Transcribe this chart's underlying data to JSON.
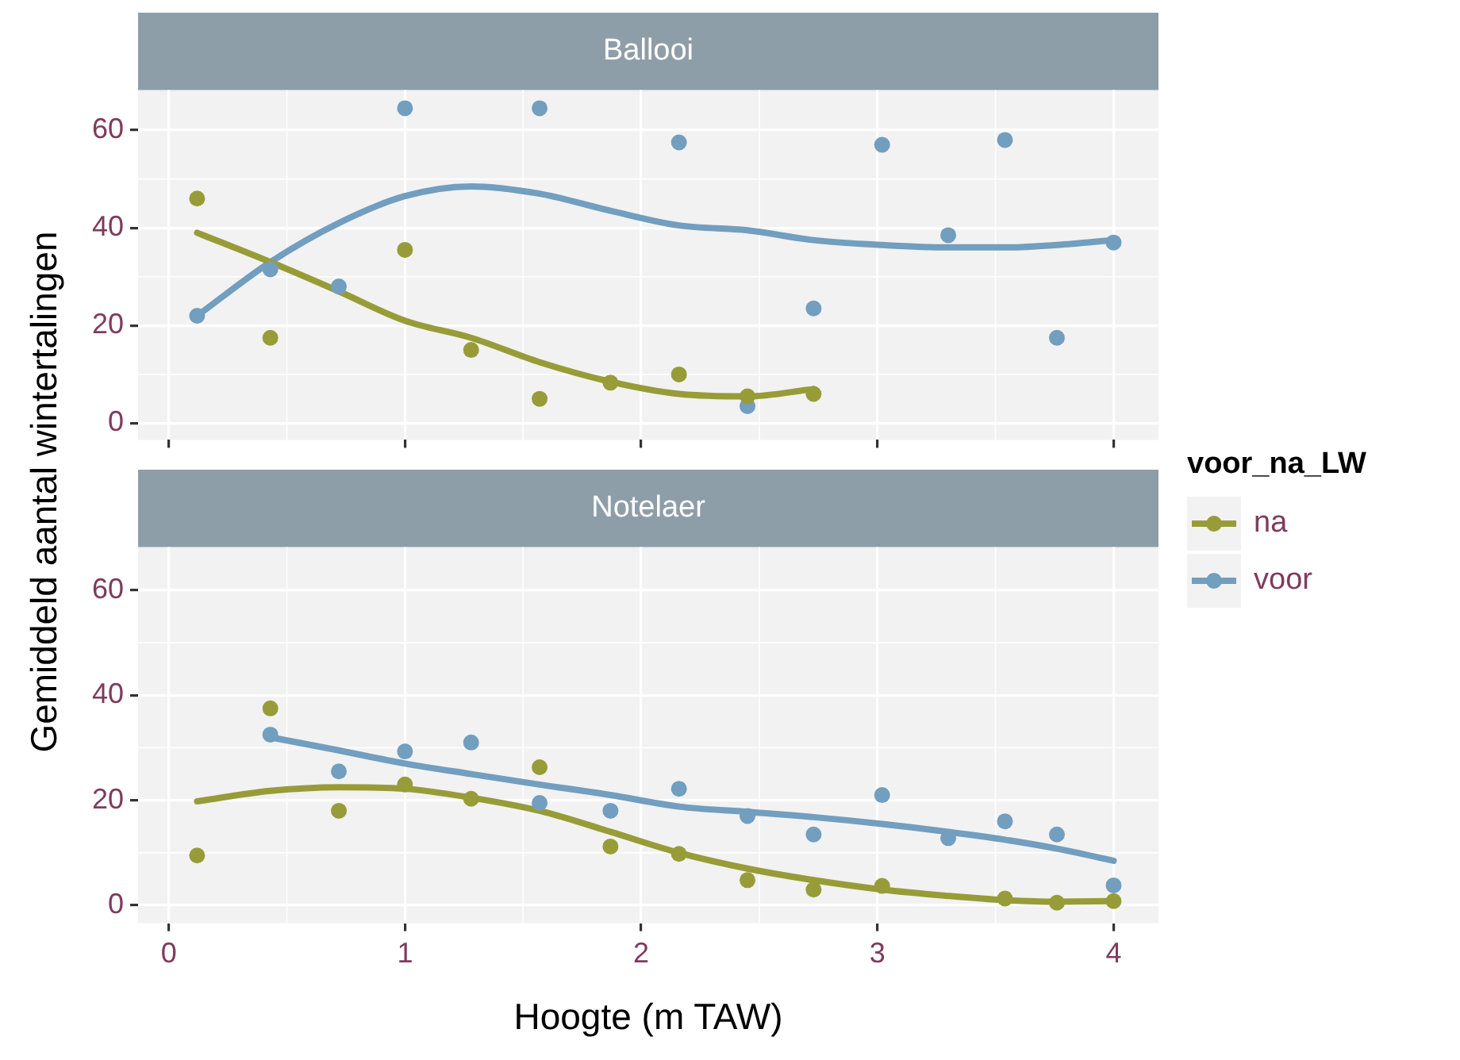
{
  "chart_data": [
    {
      "type": "scatter",
      "title": "Ballooi",
      "ylabel": "Gemiddeld aantal wintertalingen",
      "legend_title": "voor_na_LW",
      "legend": "right",
      "grid": true,
      "tick_labels": "y",
      "xlim": [
        -0.13,
        4.19
      ],
      "ylim": [
        -3.4,
        68.2
      ],
      "xticks": [
        0,
        1,
        2,
        3,
        4
      ],
      "yticks": [
        0,
        20,
        40,
        60
      ],
      "series": [
        {
          "name": "na",
          "marker": "circle",
          "color": "#989c38",
          "x": [
            0.12,
            0.43,
            1.0,
            1.28,
            1.57,
            1.87,
            2.16,
            2.45,
            2.73
          ],
          "values": [
            46,
            17.5,
            35.5,
            15,
            5,
            8.3,
            10,
            5.5,
            6
          ]
        },
        {
          "name": "voor",
          "marker": "circle",
          "color": "#729ebf",
          "x": [
            0.12,
            0.43,
            0.72,
            1.0,
            1.57,
            2.16,
            2.45,
            2.73,
            3.02,
            3.3,
            3.54,
            3.76,
            4.0
          ],
          "values": [
            22,
            31.5,
            28,
            64.5,
            64.5,
            57.5,
            3.5,
            23.5,
            57,
            38.5,
            58,
            17.5,
            37
          ]
        },
        {
          "type": "line",
          "marker": "none",
          "color": "#989c38",
          "x": [
            0.12,
            0.43,
            0.72,
            1.0,
            1.28,
            1.57,
            1.87,
            2.16,
            2.45,
            2.73
          ],
          "values": [
            39,
            33,
            27,
            21,
            17.5,
            12.5,
            8.5,
            6,
            5.5,
            7
          ]
        },
        {
          "type": "line",
          "marker": "none",
          "color": "#729ebf",
          "x": [
            0.12,
            0.43,
            0.72,
            1.0,
            1.28,
            1.57,
            1.87,
            2.16,
            2.45,
            2.73,
            3.02,
            3.3,
            3.54,
            3.76,
            4.0
          ],
          "values": [
            22,
            33,
            41,
            46.5,
            48.5,
            47,
            43.5,
            40.5,
            39.5,
            37.5,
            36.5,
            36,
            36,
            36.5,
            37.5
          ]
        }
      ]
    },
    {
      "type": "scatter",
      "title": "Notelaer",
      "xlabel": "Hoogte (m TAW)",
      "grid": true,
      "xlim": [
        -0.13,
        4.19
      ],
      "ylim": [
        -3.4,
        68.2
      ],
      "xticks": [
        0,
        1,
        2,
        3,
        4
      ],
      "yticks": [
        0,
        20,
        40,
        60
      ],
      "series": [
        {
          "marker": "circle",
          "color": "#989c38",
          "x": [
            0.12,
            0.43,
            0.72,
            1.0,
            1.28,
            1.57,
            1.87,
            2.16,
            2.45,
            2.73,
            3.02,
            3.54,
            3.76,
            4.0
          ],
          "values": [
            9.5,
            37.5,
            18,
            23,
            20.3,
            26.3,
            11.2,
            9.8,
            4.8,
            3,
            3.7,
            1.3,
            0.5,
            0.8
          ]
        },
        {
          "marker": "circle",
          "color": "#729ebf",
          "x": [
            0.43,
            0.72,
            1.0,
            1.28,
            1.57,
            1.87,
            2.16,
            2.45,
            2.73,
            3.02,
            3.3,
            3.54,
            3.76,
            4.0
          ],
          "values": [
            32.5,
            25.5,
            29.3,
            31,
            19.5,
            18,
            22.2,
            17,
            13.5,
            21,
            12.8,
            16,
            13.5,
            3.8
          ]
        },
        {
          "type": "line",
          "marker": "none",
          "color": "#989c38",
          "x": [
            0.12,
            0.43,
            0.72,
            1.0,
            1.28,
            1.57,
            1.87,
            2.16,
            2.45,
            2.73,
            3.02,
            3.3,
            3.54,
            3.76,
            4.0
          ],
          "values": [
            19.8,
            21.8,
            22.5,
            22.2,
            20.5,
            18,
            14,
            10,
            7,
            4.8,
            3,
            1.8,
            1,
            0.7,
            0.8
          ]
        },
        {
          "type": "line",
          "marker": "none",
          "color": "#729ebf",
          "x": [
            0.43,
            0.72,
            1.0,
            1.28,
            1.57,
            1.87,
            2.16,
            2.45,
            2.73,
            3.02,
            3.3,
            3.54,
            3.76,
            4.0
          ],
          "values": [
            32,
            29.5,
            27,
            25,
            23,
            21,
            18.8,
            17.8,
            16.8,
            15.5,
            14,
            12.5,
            10.8,
            8.5
          ]
        }
      ]
    }
  ]
}
